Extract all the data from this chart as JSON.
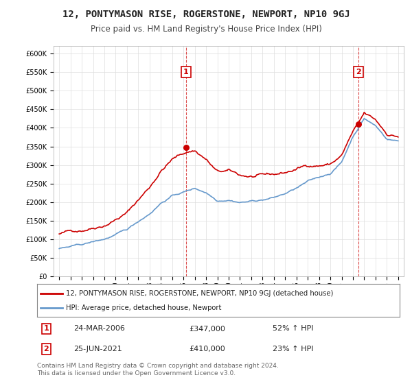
{
  "title": "12, PONTYMASON RISE, ROGERSTONE, NEWPORT, NP10 9GJ",
  "subtitle": "Price paid vs. HM Land Registry's House Price Index (HPI)",
  "sale1_date": 2006.23,
  "sale1_price": 347000,
  "sale1_label": "1",
  "sale1_text": "24-MAR-2006",
  "sale1_amount": "£347,000",
  "sale1_hpi": "52% ↑ HPI",
  "sale2_date": 2021.49,
  "sale2_price": 410000,
  "sale2_label": "2",
  "sale2_text": "25-JUN-2021",
  "sale2_amount": "£410,000",
  "sale2_hpi": "23% ↑ HPI",
  "red_color": "#cc0000",
  "blue_color": "#6699cc",
  "dashed_color": "#cc0000",
  "legend_label1": "12, PONTYMASON RISE, ROGERSTONE, NEWPORT, NP10 9GJ (detached house)",
  "legend_label2": "HPI: Average price, detached house, Newport",
  "footer": "Contains HM Land Registry data © Crown copyright and database right 2024.\nThis data is licensed under the Open Government Licence v3.0.",
  "ylim_min": 0,
  "ylim_max": 620000,
  "background_color": "#ffffff",
  "grid_color": "#dddddd",
  "hpi_knots": [
    1995,
    1997,
    1999,
    2001,
    2003,
    2004,
    2005,
    2006,
    2007,
    2008,
    2009,
    2010,
    2011,
    2012,
    2013,
    2014,
    2015,
    2016,
    2017,
    2018,
    2019,
    2020,
    2021,
    2022,
    2023,
    2024,
    2025
  ],
  "hpi_vals": [
    75000,
    83000,
    97000,
    120000,
    165000,
    195000,
    215000,
    225000,
    235000,
    225000,
    205000,
    210000,
    205000,
    208000,
    212000,
    218000,
    228000,
    242000,
    258000,
    268000,
    280000,
    310000,
    380000,
    430000,
    410000,
    375000,
    370000
  ]
}
